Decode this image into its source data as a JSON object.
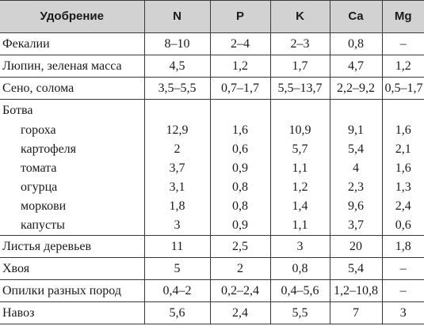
{
  "table": {
    "headers": [
      "Удобрение",
      "N",
      "P",
      "K",
      "Ca",
      "Mg"
    ],
    "rows": [
      {
        "name": "Фекалии",
        "values": [
          "8–10",
          "2–4",
          "2–3",
          "0,8",
          "–"
        ],
        "indent": false,
        "sep": false
      },
      {
        "name": "Люпин, зеленая масса",
        "values": [
          "4,5",
          "1,2",
          "1,7",
          "4,7",
          "1,2"
        ],
        "indent": false,
        "sep": true
      },
      {
        "name": "Сено, солома",
        "values": [
          "3,5–5,5",
          "0,7–1,7",
          "5,5–13,7",
          "2,2–9,2",
          "0,5–1,7"
        ],
        "indent": false,
        "sep": true
      },
      {
        "name": "Ботва",
        "values": [
          "",
          "",
          "",
          "",
          ""
        ],
        "indent": false,
        "sep": true
      },
      {
        "name": "гороха",
        "values": [
          "12,9",
          "1,6",
          "10,9",
          "9,1",
          "1,6"
        ],
        "indent": true,
        "sep": false
      },
      {
        "name": "картофеля",
        "values": [
          "2",
          "0,6",
          "5,7",
          "5,4",
          "2,1"
        ],
        "indent": true,
        "sep": false
      },
      {
        "name": "томата",
        "values": [
          "3,7",
          "0,9",
          "1,1",
          "4",
          "1,6"
        ],
        "indent": true,
        "sep": false
      },
      {
        "name": "огурца",
        "values": [
          "3,1",
          "0,8",
          "1,2",
          "2,3",
          "1,3"
        ],
        "indent": true,
        "sep": false
      },
      {
        "name": "моркови",
        "values": [
          "1,8",
          "0,8",
          "1,4",
          "9,6",
          "2,4"
        ],
        "indent": true,
        "sep": false
      },
      {
        "name": "капусты",
        "values": [
          "3",
          "0,9",
          "1,1",
          "3,7",
          "0,6"
        ],
        "indent": true,
        "sep": false
      },
      {
        "name": "Листья деревьев",
        "values": [
          "11",
          "2,5",
          "3",
          "20",
          "1,8"
        ],
        "indent": false,
        "sep": true
      },
      {
        "name": "Хвоя",
        "values": [
          "5",
          "2",
          "0,8",
          "5,4",
          "–"
        ],
        "indent": false,
        "sep": true
      },
      {
        "name": "Опилки разных пород",
        "values": [
          "0,4–2",
          "0,2–2,4",
          "0,4–5,6",
          "1,2–10,8",
          "–"
        ],
        "indent": false,
        "sep": true
      },
      {
        "name": "Навоз",
        "values": [
          "5,6",
          "2,4",
          "5,5",
          "7",
          "3"
        ],
        "indent": false,
        "sep": true
      }
    ]
  }
}
